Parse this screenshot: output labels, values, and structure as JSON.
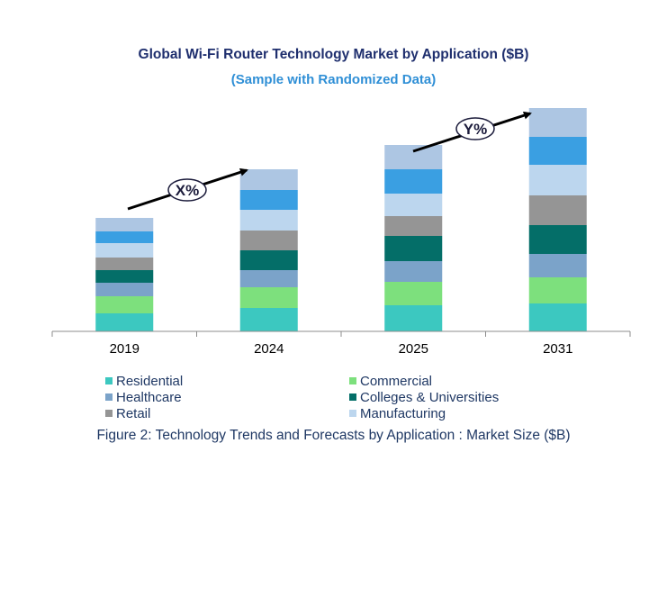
{
  "chart_data": {
    "type": "bar",
    "stacked": true,
    "title": "Global Wi-Fi Router Technology Market by Application ($B)",
    "subtitle": "(Sample with Randomized Data)",
    "categories": [
      "2019",
      "2024",
      "2025",
      "2031"
    ],
    "series": [
      {
        "name": "Residential",
        "color": "#3cc8c0",
        "values": [
          20,
          26,
          29,
          31
        ]
      },
      {
        "name": "Commercial",
        "color": "#7de07d",
        "values": [
          19,
          23,
          26,
          29
        ]
      },
      {
        "name": "Healthcare",
        "color": "#7ba3c9",
        "values": [
          15,
          19,
          23,
          26
        ]
      },
      {
        "name": "Colleges & Universities",
        "color": "#046e68",
        "values": [
          14,
          22,
          28,
          32
        ]
      },
      {
        "name": "Retail",
        "color": "#959595",
        "values": [
          14,
          22,
          22,
          33
        ]
      },
      {
        "name": "Manufacturing",
        "color": "#bcd6ee",
        "values": [
          16,
          23,
          25,
          34
        ]
      },
      {
        "name": "",
        "color": "#3a9fe2",
        "values": [
          13,
          22,
          27,
          31
        ]
      },
      {
        "name": "",
        "color": "#adc6e3",
        "values": [
          15,
          23,
          27,
          32
        ]
      }
    ],
    "grid": false,
    "legend_position": "bottom",
    "annotations": [
      {
        "text": "X%",
        "from": "2019",
        "to": "2024"
      },
      {
        "text": "Y%",
        "from": "2025",
        "to": "2031"
      }
    ]
  },
  "caption": "Figure 2: Technology  Trends  and Forecasts by Application : Market Size ($B)"
}
